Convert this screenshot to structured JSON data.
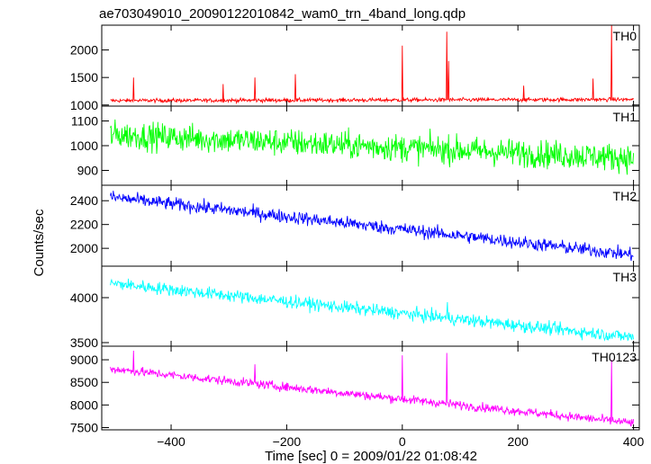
{
  "title": "ae703049010_20090122010842_wam0_trn_4band_long.qdp",
  "chart_data": [
    {
      "type": "line",
      "panel_label": "TH0",
      "color": "#ff0000",
      "xlim": [
        -520,
        410
      ],
      "ylim": [
        980,
        2450
      ],
      "yticks": [
        {
          "v": 1000,
          "label": "1000"
        },
        {
          "v": 1500,
          "label": "1500"
        },
        {
          "v": 2000,
          "label": "2000"
        }
      ],
      "trend": [
        [
          -505,
          1080
        ],
        [
          400,
          1100
        ]
      ],
      "noise": 25,
      "spikes": [
        {
          "x": -465,
          "y": 1500
        },
        {
          "x": -310,
          "y": 1380
        },
        {
          "x": -255,
          "y": 1500
        },
        {
          "x": -185,
          "y": 1560
        },
        {
          "x": 0,
          "y": 2080
        },
        {
          "x": 77,
          "y": 2330
        },
        {
          "x": 80,
          "y": 1800
        },
        {
          "x": 210,
          "y": 1350
        },
        {
          "x": 330,
          "y": 1480
        },
        {
          "x": 362,
          "y": 2450
        }
      ]
    },
    {
      "type": "line",
      "panel_label": "TH1",
      "color": "#00ff00",
      "xlim": [
        -520,
        410
      ],
      "ylim": [
        840,
        1160
      ],
      "yticks": [
        {
          "v": 900,
          "label": "900"
        },
        {
          "v": 1000,
          "label": "1000"
        },
        {
          "v": 1100,
          "label": "1100"
        }
      ],
      "trend": [
        [
          -505,
          1045
        ],
        [
          400,
          950
        ]
      ],
      "noise": 40,
      "spikes": []
    },
    {
      "type": "line",
      "panel_label": "TH2",
      "color": "#0000ff",
      "xlim": [
        -520,
        410
      ],
      "ylim": [
        1850,
        2530
      ],
      "yticks": [
        {
          "v": 2000,
          "label": "2000"
        },
        {
          "v": 2200,
          "label": "2200"
        },
        {
          "v": 2400,
          "label": "2400"
        }
      ],
      "trend": [
        [
          -505,
          2430
        ],
        [
          400,
          1945
        ]
      ],
      "noise": 40,
      "spikes": []
    },
    {
      "type": "line",
      "panel_label": "TH3",
      "color": "#00ffff",
      "xlim": [
        -520,
        410
      ],
      "ylim": [
        3460,
        4350
      ],
      "yticks": [
        {
          "v": 3500,
          "label": "3500"
        },
        {
          "v": 4000,
          "label": "4000"
        }
      ],
      "trend": [
        [
          -505,
          4160
        ],
        [
          400,
          3560
        ]
      ],
      "noise": 50,
      "spikes": [
        {
          "x": 78,
          "y": 3950
        }
      ]
    },
    {
      "type": "line",
      "panel_label": "TH0123",
      "color": "#ff00ff",
      "xlim": [
        -520,
        410
      ],
      "ylim": [
        7450,
        9300
      ],
      "yticks": [
        {
          "v": 7500,
          "label": "7500"
        },
        {
          "v": 8000,
          "label": "8000"
        },
        {
          "v": 8500,
          "label": "8500"
        },
        {
          "v": 9000,
          "label": "9000"
        }
      ],
      "trend": [
        [
          -505,
          8800
        ],
        [
          400,
          7600
        ]
      ],
      "noise": 70,
      "spikes": [
        {
          "x": -465,
          "y": 9200
        },
        {
          "x": -255,
          "y": 8900
        },
        {
          "x": 0,
          "y": 9100
        },
        {
          "x": 77,
          "y": 9150
        },
        {
          "x": 362,
          "y": 9000
        }
      ]
    }
  ],
  "x_axis": {
    "label": "Time [sec] 0 = 2009/01/22 01:08:42",
    "ticks": [
      {
        "v": -400,
        "label": "−400"
      },
      {
        "v": -200,
        "label": "−200"
      },
      {
        "v": 0,
        "label": "0"
      },
      {
        "v": 200,
        "label": "200"
      },
      {
        "v": 400,
        "label": "400"
      }
    ]
  },
  "y_axis": {
    "label": "Counts/sec"
  }
}
